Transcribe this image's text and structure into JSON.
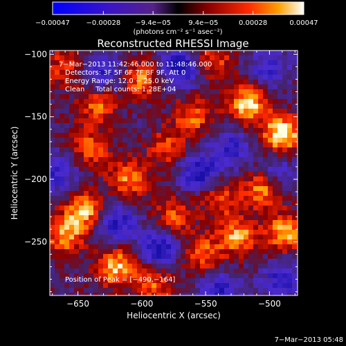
{
  "chart_data": {
    "type": "heatmap",
    "title": "Reconstructed RHESSI Image",
    "xlabel": "Heliocentric X (arcsec)",
    "ylabel": "Heliocentric Y (arcsec)",
    "xlim": [
      -672,
      -478
    ],
    "ylim": [
      -293,
      -97
    ],
    "x_ticks": [
      -650,
      -600,
      -550,
      -500
    ],
    "y_ticks": [
      -100,
      -150,
      -200,
      -250
    ],
    "x_tick_labels": [
      "−650",
      "−600",
      "−550",
      "−500"
    ],
    "y_tick_labels": [
      "−100",
      "−150",
      "−200",
      "−250"
    ],
    "colorbar": {
      "range": [
        -0.00047,
        0.00047
      ],
      "tick_values": [
        -0.00047,
        -0.00028,
        -9.4e-05,
        9.4e-05,
        0.00028,
        0.00047
      ],
      "tick_labels": [
        "−0.00047",
        "−0.00028",
        "−9.4e−05",
        "9.4e−05",
        "0.00028",
        "0.00047"
      ],
      "unit_label": "(photons cm⁻² s⁻¹ asec⁻²)"
    },
    "annotations": [
      "7−Mar−2013 11:42:46.000 to 11:48:46.000",
      "Detectors: 3F 5F 6F 7F 8F 9F, Att 0",
      "Energy Range: 12.0 − 25.0 keV",
      "Clean     Total counts: 1.28E+04",
      "Position of Peak = [−490,−164]"
    ],
    "peak": {
      "x": -490,
      "y": -164
    },
    "bright_sources": [
      {
        "x": -490,
        "y": -164,
        "v": 1.0
      },
      {
        "x": -517,
        "y": -140,
        "v": 0.85
      },
      {
        "x": -505,
        "y": -207,
        "v": 0.75
      },
      {
        "x": -488,
        "y": -243,
        "v": 0.75
      },
      {
        "x": -525,
        "y": -245,
        "v": 0.72
      },
      {
        "x": -560,
        "y": -150,
        "v": 0.6
      },
      {
        "x": -553,
        "y": -260,
        "v": 0.58
      },
      {
        "x": -575,
        "y": -230,
        "v": 0.55
      },
      {
        "x": -610,
        "y": -200,
        "v": 0.65
      },
      {
        "x": -620,
        "y": -270,
        "v": 0.8
      },
      {
        "x": -645,
        "y": -225,
        "v": 0.78
      },
      {
        "x": -660,
        "y": -245,
        "v": 0.7
      },
      {
        "x": -640,
        "y": -175,
        "v": 0.55
      },
      {
        "x": -600,
        "y": -120,
        "v": 0.65
      },
      {
        "x": -635,
        "y": -140,
        "v": 0.6
      },
      {
        "x": -580,
        "y": -175,
        "v": 0.5
      },
      {
        "x": -590,
        "y": -285,
        "v": 0.55
      },
      {
        "x": -540,
        "y": -215,
        "v": 0.5
      },
      {
        "x": -660,
        "y": -110,
        "v": 0.5
      },
      {
        "x": -545,
        "y": -105,
        "v": 0.55
      }
    ],
    "dark_regions": [
      {
        "x": -570,
        "y": -110,
        "v": -0.8
      },
      {
        "x": -630,
        "y": -115,
        "v": -0.6
      },
      {
        "x": -555,
        "y": -195,
        "v": -0.7
      },
      {
        "x": -620,
        "y": -235,
        "v": -0.65
      },
      {
        "x": -540,
        "y": -290,
        "v": -0.6
      },
      {
        "x": -490,
        "y": -280,
        "v": -0.55
      },
      {
        "x": -585,
        "y": -255,
        "v": -0.7
      },
      {
        "x": -500,
        "y": -110,
        "v": -0.5
      },
      {
        "x": -495,
        "y": -195,
        "v": -0.5
      },
      {
        "x": -665,
        "y": -195,
        "v": -0.5
      },
      {
        "x": -530,
        "y": -175,
        "v": -0.5
      }
    ],
    "colors": {
      "background": "#000000",
      "neg_dark": "#1a0fa8",
      "neg_mid": "#4a2ad0",
      "neutral": "#442266",
      "pos_low": "#8a0000",
      "pos_mid": "#ff2a00",
      "pos_high": "#ffa000",
      "pos_max": "#ffffe0"
    }
  },
  "footer": {
    "timestamp": "7−Mar−2013 05:48"
  }
}
